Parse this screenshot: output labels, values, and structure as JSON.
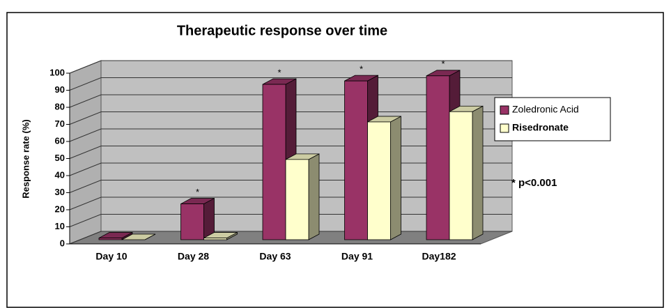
{
  "chart_data": {
    "type": "bar3d",
    "title": "Therapeutic response over time",
    "y_label": "Response rate (%)",
    "categories": [
      "Day 10",
      "Day 28",
      "Day 63",
      "Day 91",
      "Day182"
    ],
    "series": [
      {
        "name": "Zoledronic Acid",
        "color": "#993366",
        "values": [
          1,
          21,
          91,
          93,
          96
        ],
        "markers": [
          null,
          "*",
          "*",
          "*",
          "*"
        ]
      },
      {
        "name": "Risedronate",
        "color": "#ffffcc",
        "values": [
          0,
          1,
          47,
          69,
          75
        ]
      }
    ],
    "annotation": "* p<0.001",
    "ylim": [
      0,
      100
    ],
    "yticks": [
      0,
      10,
      20,
      30,
      40,
      50,
      60,
      70,
      80,
      90,
      100
    ],
    "grid": true,
    "legend": "right"
  }
}
